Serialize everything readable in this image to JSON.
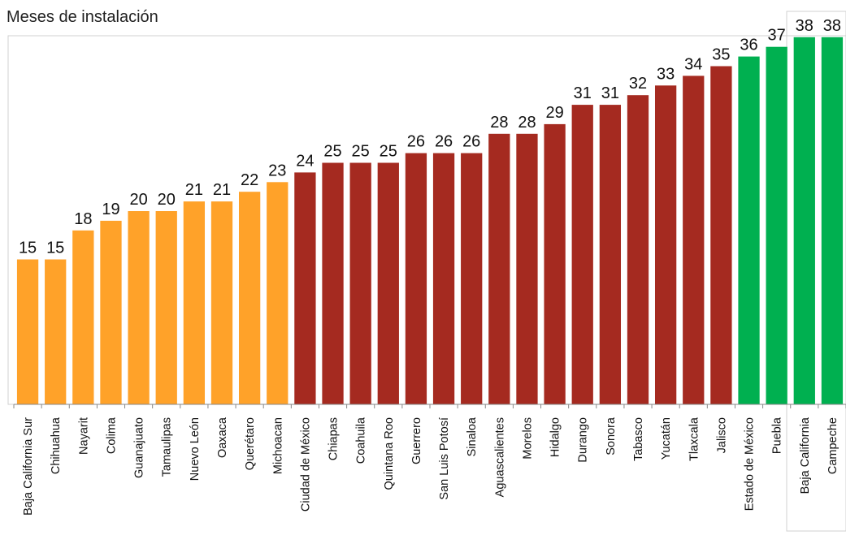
{
  "chart_data": {
    "type": "bar",
    "title": "Meses de instalación",
    "categories": [
      "Baja California Sur",
      "Chihuahua",
      "Nayarit",
      "Colima",
      "Guanajuato",
      "Tamaulipas",
      "Nuevo León",
      "Oaxaca",
      "Querétaro",
      "Michoacan",
      "Ciudad de México",
      "Chiapas",
      "Coahuila",
      "Quintana Roo",
      "Guerrero",
      "San Luis Potosí",
      "Sinaloa",
      "Aguascalientes",
      "Morelos",
      "Hidalgo",
      "Durango",
      "Sonora",
      "Tabasco",
      "Yucatán",
      "Tlaxcala",
      "Jalisco",
      "Estado de México",
      "Puebla",
      "Baja California",
      "Campeche"
    ],
    "values": [
      15,
      15,
      18,
      19,
      20,
      20,
      21,
      21,
      22,
      23,
      24,
      25,
      25,
      25,
      26,
      26,
      26,
      28,
      28,
      29,
      31,
      31,
      32,
      33,
      34,
      35,
      36,
      37,
      38,
      38
    ],
    "group": [
      "low",
      "low",
      "low",
      "low",
      "low",
      "low",
      "low",
      "low",
      "low",
      "low",
      "mid",
      "mid",
      "mid",
      "mid",
      "mid",
      "mid",
      "mid",
      "mid",
      "mid",
      "mid",
      "mid",
      "mid",
      "mid",
      "mid",
      "mid",
      "mid",
      "high",
      "high",
      "high",
      "high"
    ],
    "colors": {
      "low": "#FFA229",
      "mid": "#A52A20",
      "high": "#00B050"
    },
    "ylim": [
      0,
      40
    ],
    "grid": false,
    "legend": "none",
    "data_labels": true
  }
}
